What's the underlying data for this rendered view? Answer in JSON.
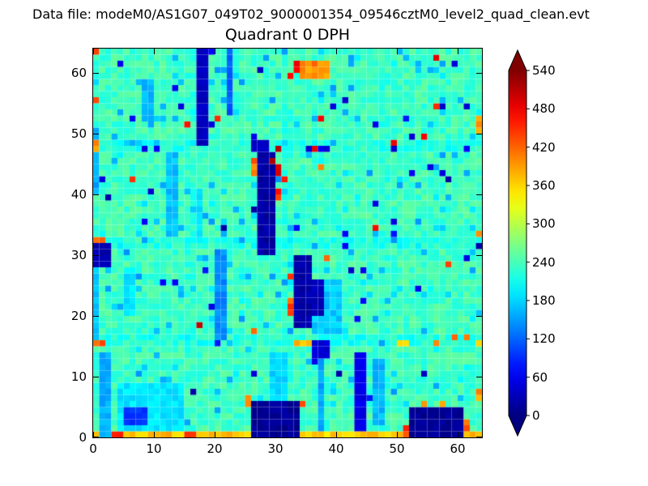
{
  "figure": {
    "suptitle": "Data file: modeM0/AS1G07_049T02_9000001354_09546cztM0_level2_quad_clean.evt"
  },
  "chart_data": {
    "type": "heatmap",
    "title": "Quadrant 0 DPH",
    "xlabel": "",
    "ylabel": "",
    "x_range": [
      0,
      64
    ],
    "y_range": [
      0,
      64
    ],
    "x_ticks": [
      0,
      10,
      20,
      30,
      40,
      50,
      60
    ],
    "y_ticks": [
      0,
      10,
      20,
      30,
      40,
      50,
      60
    ],
    "grid": false,
    "grid_size": [
      64,
      64
    ],
    "colormap": "jet",
    "colorbar": {
      "vmin": 0,
      "vmax": 540,
      "ticks": [
        0,
        60,
        120,
        180,
        240,
        300,
        360,
        420,
        480,
        540
      ],
      "extend": "both",
      "under_color": "#000080",
      "over_color": "#800000"
    },
    "base_value": 236,
    "noise": {
      "amplitude": 20,
      "seed": 1234
    },
    "module_boundaries": {
      "positions": [
        15,
        16,
        31,
        32,
        47,
        48
      ],
      "value_shift": -16
    },
    "speckles": {
      "dark_prob": 0.012,
      "dark_value": 50,
      "hot_prob": 0.006,
      "hot_value": 450,
      "cool_prob": 0.06,
      "cool_value": 175,
      "seed": 7
    },
    "features_format": "x, y, w, h, value (data coords, y up)",
    "features": [
      [
        0,
        0,
        26,
        1,
        370
      ],
      [
        34,
        0,
        18,
        1,
        360
      ],
      [
        61,
        0,
        3,
        1,
        380
      ],
      [
        1,
        0,
        2,
        14,
        160
      ],
      [
        4,
        1,
        11,
        8,
        190
      ],
      [
        5,
        2,
        4,
        3,
        95
      ],
      [
        29,
        6,
        3,
        8,
        180
      ],
      [
        37,
        1,
        1,
        12,
        155
      ],
      [
        46,
        2,
        2,
        11,
        165
      ],
      [
        0,
        16,
        1,
        12,
        175
      ],
      [
        5,
        20,
        2,
        8,
        190
      ],
      [
        20,
        16,
        2,
        15,
        140
      ],
      [
        36,
        17,
        5,
        9,
        175
      ],
      [
        12,
        33,
        2,
        14,
        170
      ],
      [
        17,
        32,
        1,
        9,
        185
      ],
      [
        0,
        40,
        1,
        11,
        155
      ],
      [
        8,
        52,
        2,
        7,
        165
      ],
      [
        22,
        53,
        1,
        11,
        115
      ],
      [
        26,
        0,
        8,
        6,
        12
      ],
      [
        52,
        0,
        9,
        5,
        12
      ],
      [
        43,
        1,
        2,
        13,
        55
      ],
      [
        36,
        13,
        3,
        3,
        45
      ],
      [
        33,
        18,
        3,
        12,
        22
      ],
      [
        36,
        20,
        2,
        6,
        30
      ],
      [
        27,
        30,
        3,
        17,
        18
      ],
      [
        0,
        28,
        3,
        4,
        25
      ],
      [
        17,
        48,
        2,
        16,
        35
      ],
      [
        26,
        47,
        3,
        2,
        40
      ],
      [
        34,
        59,
        5,
        3,
        400
      ],
      [
        33,
        60,
        1,
        2,
        470
      ],
      [
        30,
        47,
        1,
        1,
        500
      ],
      [
        30,
        39,
        1,
        2,
        455
      ],
      [
        30,
        43,
        1,
        2,
        505
      ],
      [
        29,
        45,
        1,
        1,
        530
      ],
      [
        26,
        43,
        1,
        3,
        415
      ],
      [
        32,
        20,
        1,
        3,
        430
      ],
      [
        32,
        26,
        1,
        1,
        465
      ],
      [
        0,
        32,
        2,
        1,
        410
      ],
      [
        0,
        15,
        2,
        1,
        430
      ],
      [
        0,
        47,
        1,
        2,
        390
      ],
      [
        33,
        15,
        3,
        1,
        375
      ],
      [
        50,
        15,
        2,
        1,
        360
      ],
      [
        63,
        15,
        1,
        1,
        370
      ],
      [
        25,
        5,
        1,
        2,
        400
      ],
      [
        34,
        5,
        1,
        1,
        430
      ],
      [
        51,
        0,
        1,
        2,
        440
      ],
      [
        61,
        1,
        1,
        2,
        420
      ],
      [
        54,
        5,
        1,
        1,
        400
      ],
      [
        57,
        5,
        1,
        1,
        380
      ],
      [
        3,
        0,
        2,
        1,
        460
      ],
      [
        15,
        0,
        2,
        1,
        440
      ],
      [
        63,
        6,
        1,
        2,
        395
      ],
      [
        63,
        33,
        1,
        1,
        400
      ],
      [
        63,
        50,
        1,
        3,
        385
      ],
      [
        56,
        62,
        1,
        1,
        470
      ],
      [
        0,
        63,
        1,
        1,
        420
      ],
      [
        52,
        49,
        1,
        1,
        50
      ],
      [
        59,
        61,
        1,
        1,
        45
      ],
      [
        41,
        55,
        1,
        1,
        50
      ],
      [
        46,
        51,
        1,
        1,
        55
      ],
      [
        13,
        57,
        1,
        1,
        60
      ],
      [
        4,
        61,
        1,
        1,
        55
      ],
      [
        53,
        24,
        1,
        1,
        60
      ],
      [
        49,
        35,
        1,
        1,
        55
      ],
      [
        57,
        43,
        1,
        1,
        50
      ],
      [
        46,
        38,
        1,
        1,
        60
      ],
      [
        20,
        15,
        1,
        1,
        80
      ],
      [
        41,
        31,
        1,
        1,
        70
      ],
      [
        10,
        47,
        1,
        1,
        65
      ],
      [
        37,
        47,
        2,
        1,
        50
      ],
      [
        44,
        27,
        1,
        1,
        60
      ]
    ]
  }
}
